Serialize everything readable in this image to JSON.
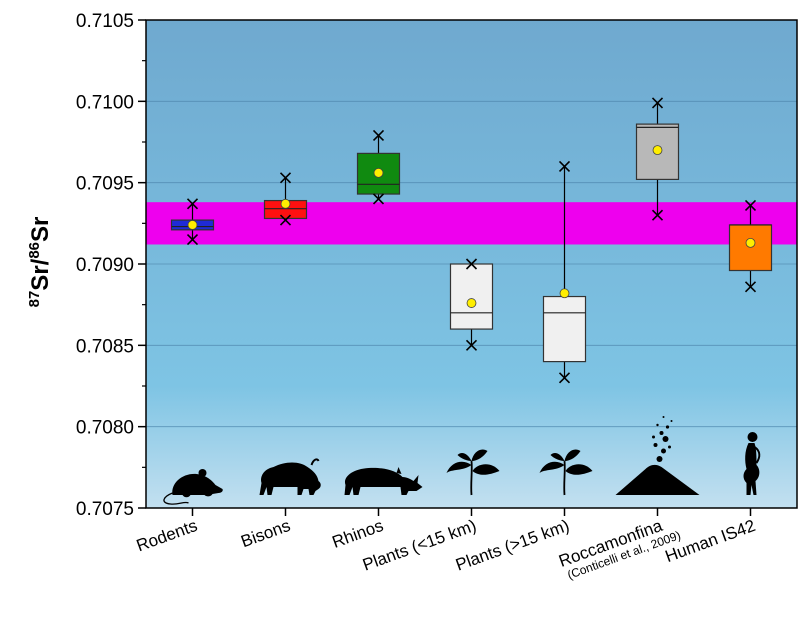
{
  "chart_data": {
    "type": "box",
    "ylabel": {
      "iso1_mass": "87",
      "iso1_symbol": "Sr",
      "separator": "/",
      "iso2_mass": "86",
      "iso2_symbol": "Sr"
    },
    "ylim": [
      0.7075,
      0.7105
    ],
    "yticks": [
      "0.7075",
      "0.7080",
      "0.7085",
      "0.7090",
      "0.7095",
      "0.7100",
      "0.7105"
    ],
    "band": {
      "low": 0.70912,
      "high": 0.70938,
      "color": "#ee00ee"
    },
    "background": {
      "top": "#6fa9cf",
      "bottom": "#c3e0f0"
    },
    "categories": [
      {
        "label": "Rodents",
        "sublabel": "",
        "q1": 0.70921,
        "median": 0.70923,
        "q3": 0.70927,
        "mean": 0.70924,
        "min": 0.70915,
        "max": 0.70937,
        "color": "#1f2bd6",
        "icon": "rodent-icon"
      },
      {
        "label": "Bisons",
        "sublabel": "",
        "q1": 0.70928,
        "median": 0.70934,
        "q3": 0.70939,
        "mean": 0.70937,
        "min": 0.70927,
        "max": 0.70953,
        "color": "#ff1010",
        "icon": "bison-icon"
      },
      {
        "label": "Rhinos",
        "sublabel": "",
        "q1": 0.70943,
        "median": 0.70949,
        "q3": 0.70968,
        "mean": 0.70956,
        "min": 0.7094,
        "max": 0.70979,
        "color": "#108a10",
        "icon": "rhino-icon"
      },
      {
        "label": "Plants (<15 km)",
        "sublabel": "",
        "q1": 0.7086,
        "median": 0.7087,
        "q3": 0.709,
        "mean": 0.70876,
        "min": 0.7085,
        "max": 0.709,
        "color": "#f0f0f0",
        "icon": "plant-icon"
      },
      {
        "label": "Plants (>15 km)",
        "sublabel": "",
        "q1": 0.7084,
        "median": 0.7087,
        "q3": 0.7088,
        "mean": 0.70882,
        "min": 0.7083,
        "max": 0.7096,
        "color": "#f0f0f0",
        "icon": "plant-icon"
      },
      {
        "label": "Roccamonfina",
        "sublabel": "(Conticelli et al., 2009)",
        "q1": 0.70952,
        "median": 0.70984,
        "q3": 0.70986,
        "mean": 0.7097,
        "min": 0.7093,
        "max": 0.70999,
        "color": "#b8b8b8",
        "icon": "volcano-icon"
      },
      {
        "label": "Human IS42",
        "sublabel": "",
        "q1": 0.70896,
        "median": 0.70924,
        "q3": 0.70924,
        "mean": 0.70913,
        "min": 0.70886,
        "max": 0.70936,
        "color": "#ff7a00",
        "icon": "human-icon"
      }
    ],
    "mean_marker_color": "#ffee00",
    "grid": "horizontal-major"
  }
}
